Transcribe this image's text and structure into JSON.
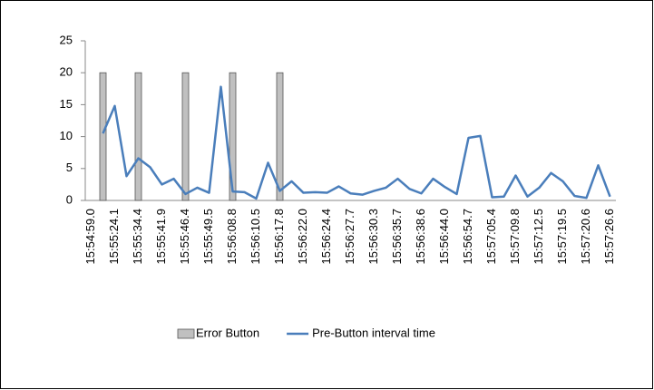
{
  "chart_data": {
    "type": "bar-line",
    "categories": [
      "15:54:59.0",
      null,
      "15:55:24.1",
      null,
      "15:55:34.4",
      null,
      "15:55:41.9",
      null,
      "15:55:46.4",
      null,
      "15:55:49.5",
      null,
      "15:56:08.8",
      null,
      "15:56:10.5",
      null,
      "15:56:17.8",
      null,
      "15:56:22.0",
      null,
      "15:56:24.4",
      null,
      "15:56:27.7",
      null,
      "15:56:30.3",
      null,
      "15:56:35.7",
      null,
      "15:56:38.6",
      null,
      "15:56:44.0",
      null,
      "15:56:54.7",
      null,
      "15:57:05.4",
      null,
      "15:57:09.8",
      null,
      "15:57:12.5",
      null,
      "15:57:19.5",
      null,
      "15:57:20.6",
      null,
      "15:57:26.6"
    ],
    "series": [
      {
        "name": "Error Button",
        "type": "bar",
        "color": "#c0c0c0",
        "values": [
          null,
          20,
          null,
          null,
          20,
          null,
          null,
          null,
          20,
          null,
          null,
          null,
          20,
          null,
          null,
          null,
          20,
          null,
          null,
          null,
          null,
          null,
          null,
          null,
          null,
          null,
          null,
          null,
          null,
          null,
          null,
          null,
          null,
          null,
          null,
          null,
          null,
          null,
          null,
          null,
          null,
          null,
          null,
          null,
          null
        ]
      },
      {
        "name": "Pre-Button interval time",
        "type": "line",
        "color": "#4a7ebb",
        "values": [
          null,
          10.5,
          14.8,
          3.8,
          6.6,
          5.2,
          2.5,
          3.4,
          1.0,
          2.0,
          1.2,
          17.8,
          1.4,
          1.3,
          0.3,
          5.9,
          1.5,
          3.0,
          1.2,
          1.3,
          1.2,
          2.2,
          1.1,
          0.9,
          1.5,
          2.0,
          3.4,
          1.8,
          1.1,
          3.4,
          2.1,
          1.0,
          9.8,
          10.1,
          0.5,
          0.6,
          3.9,
          0.6,
          2.0,
          4.3,
          3.0,
          0.7,
          0.4,
          5.5,
          0.6
        ]
      }
    ],
    "ylim": [
      0,
      25
    ],
    "yticks": [
      0,
      5,
      10,
      15,
      20,
      25
    ],
    "legend": "bottom"
  }
}
